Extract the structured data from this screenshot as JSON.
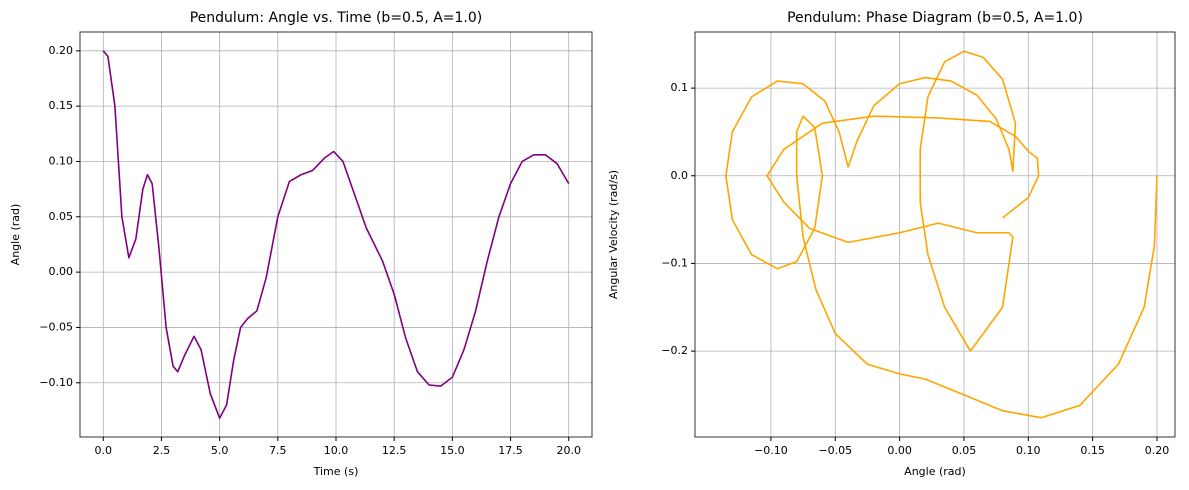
{
  "chart_data": [
    {
      "type": "line",
      "title": "Pendulum: Angle vs. Time (b=0.5, A=1.0)",
      "x_label": "Time (s)",
      "y_label": "Angle (rad)",
      "grid": true,
      "xlim": [
        -1.0,
        21.0
      ],
      "ylim": [
        -0.149,
        0.217
      ],
      "xticks": [
        {
          "value": 0,
          "label": "0.0"
        },
        2.5,
        {
          "value": 5,
          "label": "5.0"
        },
        7.5,
        {
          "value": 10,
          "label": "10.0"
        },
        12.5,
        {
          "value": 15,
          "label": "15.0"
        },
        17.5,
        {
          "value": 20,
          "label": "20.0"
        }
      ],
      "yticks": [
        {
          "value": -0.1,
          "label": "−0.10"
        },
        {
          "value": -0.05,
          "label": "−0.05"
        },
        {
          "value": 0,
          "label": "0.00"
        },
        0.05,
        {
          "value": 0.1,
          "label": "0.10"
        },
        0.15,
        {
          "value": 0.2,
          "label": "0.20"
        }
      ],
      "x": [
        0,
        0.2,
        0.5,
        0.8,
        1.1,
        1.4,
        1.7,
        1.9,
        2.1,
        2.4,
        2.7,
        3.0,
        3.2,
        3.5,
        3.9,
        4.2,
        4.6,
        5.0,
        5.3,
        5.6,
        5.9,
        6.2,
        6.6,
        7.0,
        7.5,
        8.0,
        8.5,
        9.0,
        9.5,
        9.9,
        10.3,
        10.8,
        11.3,
        12.0,
        12.5,
        13.0,
        13.5,
        14.0,
        14.5,
        15.0,
        15.5,
        16.0,
        16.5,
        17.0,
        17.5,
        18.0,
        18.5,
        19.0,
        19.5,
        20.0
      ],
      "series": [
        {
          "color": "#800080",
          "values": [
            0.2,
            0.195,
            0.15,
            0.05,
            0.013,
            0.03,
            0.075,
            0.088,
            0.08,
            0.02,
            -0.05,
            -0.085,
            -0.09,
            -0.075,
            -0.058,
            -0.07,
            -0.11,
            -0.132,
            -0.12,
            -0.08,
            -0.05,
            -0.042,
            -0.035,
            -0.005,
            0.05,
            0.082,
            0.088,
            0.092,
            0.103,
            0.109,
            0.1,
            0.07,
            0.04,
            0.01,
            -0.02,
            -0.06,
            -0.09,
            -0.102,
            -0.103,
            -0.095,
            -0.07,
            -0.035,
            0.01,
            0.05,
            0.08,
            0.1,
            0.106,
            0.106,
            0.098,
            0.08
          ]
        }
      ]
    },
    {
      "type": "line",
      "title": "Pendulum: Phase Diagram (b=0.5, A=1.0)",
      "x_label": "Angle (rad)",
      "y_label": "Angular Velocity (rad/s)",
      "grid": true,
      "xlim": [
        -0.159,
        0.214
      ],
      "ylim": [
        -0.298,
        0.164
      ],
      "xticks": [
        {
          "value": -0.1,
          "label": "−0.10"
        },
        {
          "value": -0.05,
          "label": "−0.05"
        },
        {
          "value": 0,
          "label": "0.00"
        },
        0.05,
        {
          "value": 0.1,
          "label": "0.10"
        },
        0.15,
        {
          "value": 0.2,
          "label": "0.20"
        }
      ],
      "yticks": [
        {
          "value": -0.2,
          "label": "−0.2"
        },
        {
          "value": -0.1,
          "label": "−0.1"
        },
        {
          "value": 0,
          "label": "0.0"
        },
        0.1
      ],
      "x": [
        0.2,
        0.198,
        0.19,
        0.17,
        0.14,
        0.11,
        0.08,
        0.05,
        0.02,
        0.0,
        -0.025,
        -0.05,
        -0.065,
        -0.075,
        -0.08,
        -0.08,
        -0.075,
        -0.066,
        -0.06,
        -0.066,
        -0.08,
        -0.095,
        -0.115,
        -0.13,
        -0.135,
        -0.13,
        -0.115,
        -0.095,
        -0.075,
        -0.058,
        -0.047,
        -0.04,
        -0.033,
        -0.02,
        0.0,
        0.02,
        0.04,
        0.06,
        0.075,
        0.085,
        0.088,
        0.09,
        0.08,
        0.065,
        0.05,
        0.035,
        0.022,
        0.016,
        0.016,
        0.022,
        0.035,
        0.055,
        0.08,
        0.088,
        0.085,
        0.06,
        0.03,
        0.0,
        -0.04,
        -0.07,
        -0.09,
        -0.103,
        -0.09,
        -0.06,
        -0.02,
        0.03,
        0.07,
        0.09,
        0.1,
        0.107,
        0.108,
        0.1,
        0.08
      ],
      "series": [
        {
          "color": "#ffa500",
          "values": [
            0.0,
            -0.08,
            -0.15,
            -0.215,
            -0.262,
            -0.276,
            -0.268,
            -0.25,
            -0.232,
            -0.226,
            -0.215,
            -0.18,
            -0.13,
            -0.07,
            0.0,
            0.05,
            0.068,
            0.055,
            0.0,
            -0.06,
            -0.098,
            -0.106,
            -0.09,
            -0.05,
            0.0,
            0.05,
            0.09,
            0.108,
            0.105,
            0.085,
            0.05,
            0.01,
            0.04,
            0.08,
            0.105,
            0.112,
            0.108,
            0.092,
            0.065,
            0.03,
            0.005,
            0.06,
            0.11,
            0.135,
            0.142,
            0.13,
            0.09,
            0.03,
            -0.03,
            -0.09,
            -0.15,
            -0.2,
            -0.15,
            -0.07,
            -0.065,
            -0.065,
            -0.054,
            -0.065,
            -0.076,
            -0.06,
            -0.03,
            0.0,
            0.03,
            0.06,
            0.068,
            0.066,
            0.062,
            0.045,
            0.028,
            0.02,
            0.0,
            -0.025,
            -0.048
          ]
        }
      ]
    }
  ]
}
